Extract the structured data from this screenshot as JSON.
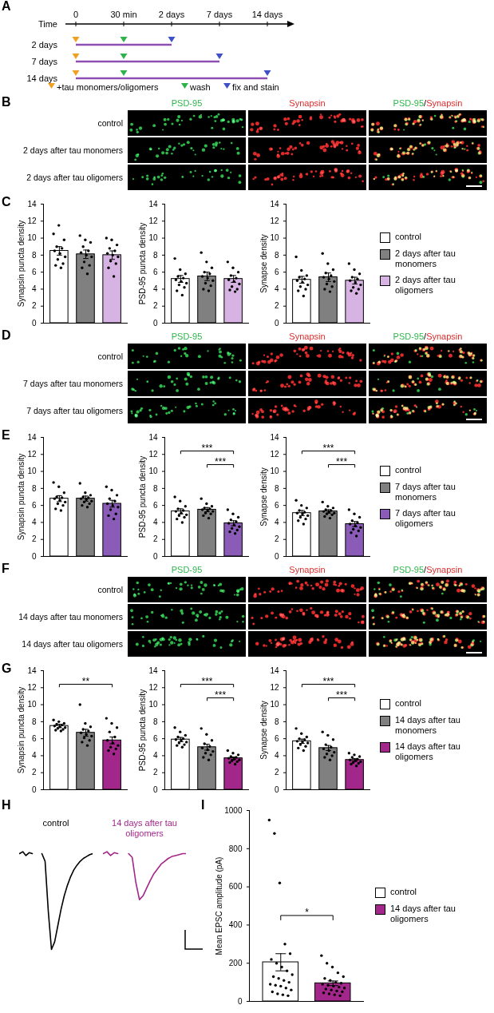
{
  "timeline": {
    "panel": "A",
    "axis_title": "Time",
    "ticks": [
      "0",
      "30 min",
      "2 days",
      "7 days",
      "14 days"
    ],
    "line_color": "#8e4fb3",
    "rows": [
      {
        "label": "2 days",
        "end": "2 days"
      },
      {
        "label": "7 days",
        "end": "7 days"
      },
      {
        "label": "14 days",
        "end": "14 days"
      }
    ],
    "events": [
      {
        "label": "+tau monomers/oligomers",
        "color": "#f0a020",
        "at": "0"
      },
      {
        "label": "wash",
        "color": "#2db34a",
        "at": "30 min"
      },
      {
        "label": "fix and stain",
        "color": "#3f4fc8"
      }
    ]
  },
  "images": [
    {
      "panel": "B",
      "columns": [
        "PSD-95",
        "Synapsin",
        "PSD-95/Synapsin"
      ],
      "colors": [
        "#2fb84a",
        "#e02a2a"
      ],
      "rows": [
        "control",
        "2 days after tau monomers",
        "2 days after tau oligomers"
      ]
    },
    {
      "panel": "D",
      "columns": [
        "PSD-95",
        "Synapsin",
        "PSD-95/Synapsin"
      ],
      "colors": [
        "#2fb84a",
        "#e02a2a"
      ],
      "rows": [
        "control",
        "7 days after tau monomers",
        "7 days after tau oligomers"
      ]
    },
    {
      "panel": "F",
      "columns": [
        "PSD-95",
        "Synapsin",
        "PSD-95/Synapsin"
      ],
      "colors": [
        "#2fb84a",
        "#e02a2a"
      ],
      "rows": [
        "control",
        "14 days after tau monomers",
        "14 days after tau oligomers"
      ]
    }
  ],
  "chart_data": [
    {
      "panel": "C",
      "type": "bar",
      "ylabel": "Synapsin puncta density",
      "categories": [
        "control",
        "2 days after tau monomers",
        "2 days after tau oligomers"
      ],
      "colors": [
        "#ffffff",
        "#808080",
        "#d7b3e3"
      ],
      "values": [
        8.5,
        8.1,
        8.0
      ],
      "errors": [
        0.5,
        0.5,
        0.5
      ],
      "points": [
        [
          10.5,
          11.5,
          9.8,
          9,
          8.8,
          8.5,
          8.2,
          7.8,
          7.5,
          7,
          6.8,
          6.5
        ],
        [
          10.3,
          9.8,
          9.5,
          9,
          8.5,
          8.3,
          8,
          7.8,
          7.2,
          6.8,
          6.5,
          5.8
        ],
        [
          10,
          9.8,
          9.2,
          8.8,
          8.5,
          8.2,
          8,
          7.8,
          7.3,
          7,
          6.5,
          5.5
        ]
      ],
      "ylim": [
        0,
        14
      ],
      "yticks": [
        0,
        2,
        4,
        6,
        8,
        10,
        12,
        14
      ],
      "tick_labels": "y",
      "annotations": []
    },
    {
      "panel": "C",
      "type": "bar",
      "ylabel": "PSD-95 puncta density",
      "categories": [
        "control",
        "2 days after tau monomers",
        "2 days after tau oligomers"
      ],
      "colors": [
        "#ffffff",
        "#808080",
        "#d7b3e3"
      ],
      "values": [
        5.2,
        5.5,
        5.2
      ],
      "errors": [
        0.4,
        0.5,
        0.4
      ],
      "points": [
        [
          7.6,
          6.3,
          5.8,
          5.5,
          5.3,
          5.1,
          4.9,
          4.7,
          4.5,
          4.2,
          3.8,
          3.3
        ],
        [
          8.3,
          7.2,
          6.5,
          6,
          5.8,
          5.5,
          5.3,
          5,
          4.7,
          4.4,
          4,
          3.8
        ],
        [
          7.2,
          6.5,
          6,
          5.6,
          5.3,
          5.1,
          4.9,
          4.6,
          4.3,
          4,
          3.9,
          3.7
        ]
      ],
      "ylim": [
        0,
        14
      ],
      "yticks": [
        0,
        2,
        4,
        6,
        8,
        10,
        12,
        14
      ],
      "tick_labels": "y",
      "annotations": []
    },
    {
      "panel": "C",
      "type": "bar",
      "ylabel": "Synapse density",
      "categories": [
        "control",
        "2 days after tau monomers",
        "2 days after tau oligomers"
      ],
      "colors": [
        "#ffffff",
        "#808080",
        "#d7b3e3"
      ],
      "values": [
        5.1,
        5.4,
        5.0
      ],
      "errors": [
        0.4,
        0.5,
        0.4
      ],
      "points": [
        [
          7.8,
          6.2,
          5.6,
          5.4,
          5.2,
          5,
          4.8,
          4.5,
          4.3,
          4,
          3.8,
          3.2
        ],
        [
          8.2,
          7,
          6.3,
          5.9,
          5.6,
          5.4,
          5.2,
          4.9,
          4.6,
          4.3,
          4,
          3.7
        ],
        [
          7,
          6.3,
          5.8,
          5.4,
          5.2,
          5,
          4.8,
          4.5,
          4.2,
          4,
          3.8,
          3.5
        ]
      ],
      "ylim": [
        0,
        14
      ],
      "yticks": [
        0,
        2,
        4,
        6,
        8,
        10,
        12,
        14
      ],
      "tick_labels": "y",
      "legend": "right",
      "annotations": []
    },
    {
      "panel": "E",
      "type": "bar",
      "ylabel": "Synapsin puncta density",
      "categories": [
        "control",
        "7 days after tau monomers",
        "7 days after tau oligomers"
      ],
      "colors": [
        "#ffffff",
        "#808080",
        "#8a5cb8"
      ],
      "values": [
        6.8,
        6.8,
        6.2
      ],
      "errors": [
        0.35,
        0.3,
        0.4
      ],
      "points": [
        [
          8.7,
          8.2,
          7.5,
          7,
          6.9,
          6.8,
          6.6,
          6.4,
          6.2,
          6,
          5.6,
          5.4
        ],
        [
          8.6,
          7.5,
          7.2,
          7,
          6.9,
          6.8,
          6.7,
          6.5,
          6.4,
          6.2,
          6,
          5.8
        ],
        [
          8.2,
          7.8,
          7.2,
          6.8,
          6.5,
          6.2,
          6,
          5.8,
          5.5,
          5,
          4.8,
          4.4
        ]
      ],
      "ylim": [
        0,
        14
      ],
      "yticks": [
        0,
        2,
        4,
        6,
        8,
        10,
        12,
        14
      ],
      "tick_labels": "y",
      "annotations": []
    },
    {
      "panel": "E",
      "type": "bar",
      "ylabel": "PSD-95 puncta density",
      "categories": [
        "control",
        "7 days after tau monomers",
        "7 days after tau oligomers"
      ],
      "colors": [
        "#ffffff",
        "#808080",
        "#8a5cb8"
      ],
      "values": [
        5.3,
        5.5,
        3.9
      ],
      "errors": [
        0.3,
        0.25,
        0.3
      ],
      "points": [
        [
          7,
          6.5,
          5.9,
          5.6,
          5.4,
          5.3,
          5.1,
          4.9,
          4.8,
          4.6,
          4.4,
          4
        ],
        [
          6.8,
          6.2,
          5.9,
          5.7,
          5.6,
          5.5,
          5.4,
          5.3,
          5.1,
          5,
          4.8,
          4.5
        ],
        [
          5.5,
          5,
          4.6,
          4.3,
          4.1,
          3.9,
          3.7,
          3.5,
          3.3,
          3.1,
          2.9,
          2.7
        ]
      ],
      "ylim": [
        0,
        14
      ],
      "yticks": [
        0,
        2,
        4,
        6,
        8,
        10,
        12,
        14
      ],
      "tick_labels": "y",
      "annotations": [
        {
          "from": 0,
          "to": 2,
          "label": "***",
          "y": 12.4
        },
        {
          "from": 1,
          "to": 2,
          "label": "***",
          "y": 10.8
        }
      ]
    },
    {
      "panel": "E",
      "type": "bar",
      "ylabel": "Synapse density",
      "categories": [
        "control",
        "7 days after tau monomers",
        "7 days after tau oligomers"
      ],
      "colors": [
        "#ffffff",
        "#808080",
        "#8a5cb8"
      ],
      "values": [
        5.1,
        5.3,
        3.8
      ],
      "errors": [
        0.3,
        0.2,
        0.3
      ],
      "points": [
        [
          6.6,
          6,
          5.7,
          5.4,
          5.2,
          5.1,
          5,
          4.8,
          4.6,
          4.4,
          4.2,
          3.8
        ],
        [
          6.4,
          5.9,
          5.7,
          5.5,
          5.4,
          5.3,
          5.2,
          5.1,
          5,
          4.9,
          4.7,
          4.5
        ],
        [
          5.5,
          5,
          4.6,
          4.2,
          4,
          3.8,
          3.6,
          3.4,
          3.2,
          3,
          2.8,
          2.4
        ]
      ],
      "ylim": [
        0,
        14
      ],
      "yticks": [
        0,
        2,
        4,
        6,
        8,
        10,
        12,
        14
      ],
      "tick_labels": "y",
      "legend": "right",
      "annotations": [
        {
          "from": 0,
          "to": 2,
          "label": "***",
          "y": 12.4
        },
        {
          "from": 1,
          "to": 2,
          "label": "***",
          "y": 10.8
        }
      ]
    },
    {
      "panel": "G",
      "type": "bar",
      "ylabel": "Synapsin puncta density",
      "categories": [
        "control",
        "14 days after tau monomers",
        "14 days after tau oligomers"
      ],
      "colors": [
        "#ffffff",
        "#808080",
        "#a3268a"
      ],
      "values": [
        7.5,
        6.7,
        5.8
      ],
      "errors": [
        0.2,
        0.4,
        0.4
      ],
      "points": [
        [
          8.2,
          8,
          7.8,
          7.7,
          7.6,
          7.5,
          7.4,
          7.3,
          7.2,
          7.1,
          7,
          6.9
        ],
        [
          10,
          7.8,
          7.4,
          7.1,
          6.9,
          6.7,
          6.5,
          6.3,
          6.1,
          5.8,
          5.6,
          5.2
        ],
        [
          8.4,
          7.8,
          7.3,
          6.8,
          6.2,
          5.8,
          5.5,
          5.2,
          5,
          4.8,
          4.6,
          4.2
        ]
      ],
      "ylim": [
        0,
        14
      ],
      "yticks": [
        0,
        2,
        4,
        6,
        8,
        10,
        12,
        14
      ],
      "tick_labels": "y",
      "annotations": [
        {
          "from": 0,
          "to": 2,
          "label": "**",
          "y": 12.4
        }
      ]
    },
    {
      "panel": "G",
      "type": "bar",
      "ylabel": "PSD-95 puncta density",
      "categories": [
        "control",
        "14 days after tau monomers",
        "14 days after tau oligomers"
      ],
      "colors": [
        "#ffffff",
        "#808080",
        "#a3268a"
      ],
      "values": [
        5.9,
        5.0,
        3.7
      ],
      "errors": [
        0.25,
        0.35,
        0.15
      ],
      "points": [
        [
          7.3,
          6.8,
          6.4,
          6.2,
          6,
          5.9,
          5.8,
          5.6,
          5.5,
          5.3,
          5.2,
          5
        ],
        [
          7.2,
          6.5,
          5.8,
          5.4,
          5.1,
          4.9,
          4.7,
          4.5,
          4.3,
          4.1,
          3.8,
          3.5
        ],
        [
          4.6,
          4.3,
          4.1,
          3.9,
          3.8,
          3.7,
          3.6,
          3.5,
          3.4,
          3.3,
          3.2,
          3
        ]
      ],
      "ylim": [
        0,
        14
      ],
      "yticks": [
        0,
        2,
        4,
        6,
        8,
        10,
        12,
        14
      ],
      "tick_labels": "y",
      "annotations": [
        {
          "from": 0,
          "to": 2,
          "label": "***",
          "y": 12.4
        },
        {
          "from": 1,
          "to": 2,
          "label": "***",
          "y": 10.8
        }
      ]
    },
    {
      "panel": "G",
      "type": "bar",
      "ylabel": "Synapse density",
      "categories": [
        "control",
        "14 days after tau monomers",
        "14 days after tau oligomers"
      ],
      "colors": [
        "#ffffff",
        "#808080",
        "#a3268a"
      ],
      "values": [
        5.7,
        4.9,
        3.5
      ],
      "errors": [
        0.25,
        0.3,
        0.15
      ],
      "points": [
        [
          7.2,
          6.6,
          6.2,
          6,
          5.9,
          5.7,
          5.6,
          5.5,
          5.3,
          5.1,
          4.9,
          4.6
        ],
        [
          6.8,
          6.4,
          5.9,
          5.3,
          5,
          4.8,
          4.6,
          4.4,
          4.2,
          4,
          3.8,
          3.5
        ],
        [
          4.3,
          4.1,
          3.9,
          3.8,
          3.6,
          3.5,
          3.4,
          3.3,
          3.2,
          3.1,
          3,
          2.8
        ]
      ],
      "ylim": [
        0,
        14
      ],
      "yticks": [
        0,
        2,
        4,
        6,
        8,
        10,
        12,
        14
      ],
      "tick_labels": "y",
      "legend": "right",
      "annotations": [
        {
          "from": 0,
          "to": 2,
          "label": "***",
          "y": 12.4
        },
        {
          "from": 1,
          "to": 2,
          "label": "***",
          "y": 10.8
        }
      ]
    },
    {
      "panel": "H",
      "type": "line",
      "tick_labels": false,
      "ylim": [
        -105,
        5
      ],
      "series": [
        {
          "name": "control",
          "color": "#000000",
          "values": [
            0,
            2,
            -2,
            1,
            0,
            null,
            null,
            0,
            -8,
            -60,
            -100,
            -92,
            -75,
            -58,
            -44,
            -33,
            -24,
            -17,
            -12,
            -8,
            -5,
            -3,
            -1,
            0
          ]
        },
        {
          "name": "14 days after tau oligomers",
          "color": "#a3268a",
          "values": [
            0,
            2,
            -2,
            1,
            0,
            null,
            null,
            0,
            -4,
            -30,
            -48,
            -44,
            -36,
            -28,
            -21,
            -16,
            -11,
            -8,
            -5,
            -3,
            -2,
            -1,
            0,
            0
          ]
        }
      ]
    },
    {
      "panel": "I",
      "type": "bar",
      "ylabel": "Mean EPSC amplitude (pA)",
      "categories": [
        "control",
        "14 days after tau oligomers"
      ],
      "colors": [
        "#ffffff",
        "#a3268a"
      ],
      "values": [
        205,
        95
      ],
      "errors": [
        45,
        12
      ],
      "points": [
        [
          950,
          880,
          620,
          300,
          250,
          220,
          200,
          180,
          160,
          140,
          130,
          120,
          110,
          100,
          90,
          85,
          80,
          70,
          60,
          50,
          40,
          35,
          30
        ],
        [
          240,
          200,
          180,
          150,
          130,
          120,
          110,
          100,
          95,
          90,
          85,
          80,
          75,
          70,
          65,
          60,
          55,
          50,
          45,
          40,
          35,
          30
        ]
      ],
      "ylim": [
        0,
        1000
      ],
      "yticks": [
        0,
        200,
        400,
        600,
        800,
        1000
      ],
      "tick_labels": "y",
      "legend": "right",
      "annotations": [
        {
          "from": 0,
          "to": 1,
          "label": "*",
          "y": 450
        }
      ]
    }
  ]
}
